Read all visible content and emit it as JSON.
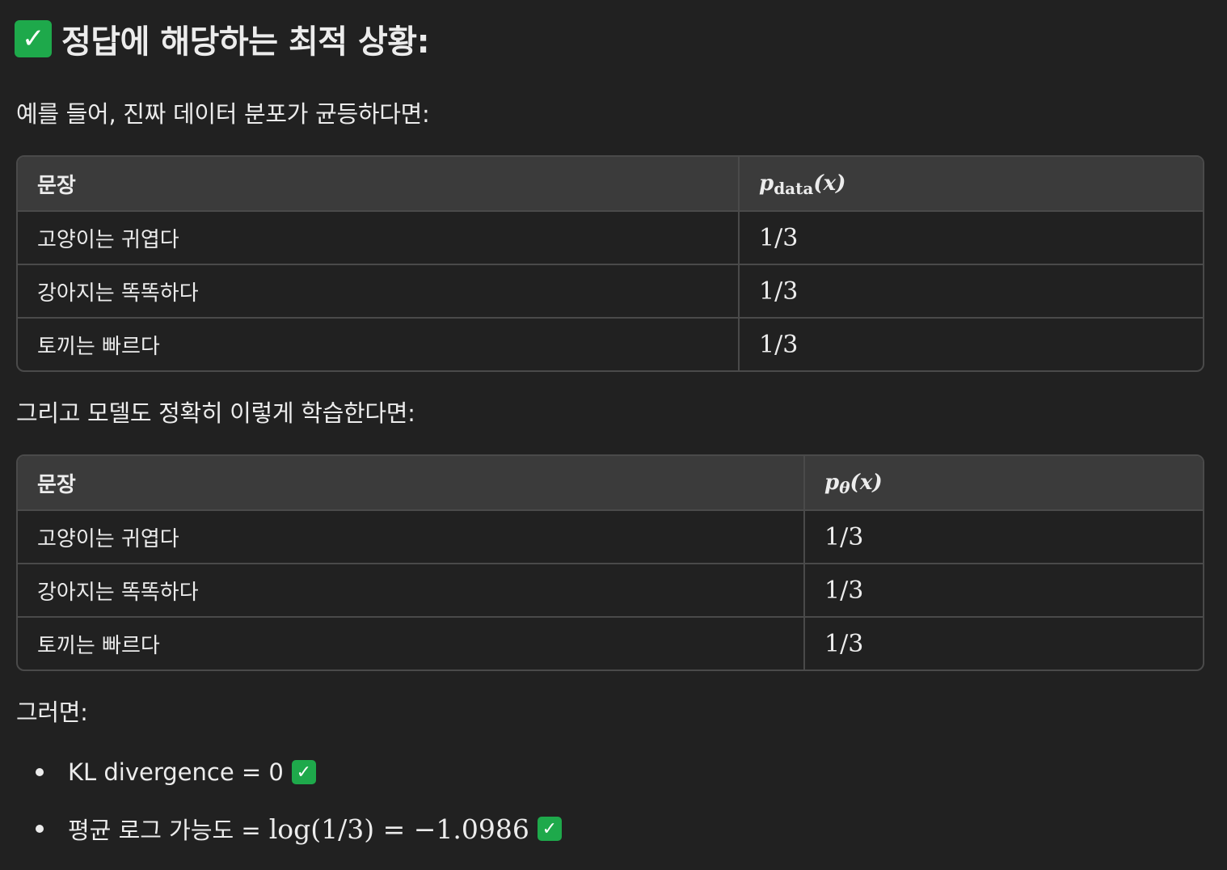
{
  "heading": {
    "icon": "check-mark-icon",
    "text": "정답에 해당하는 최적 상황:"
  },
  "intro1": "예를 들어, 진짜 데이터 분포가 균등하다면:",
  "table1": {
    "col1": "문장",
    "col2_base": "p",
    "col2_sub": "data",
    "col2_arg": "(x)",
    "rows": [
      {
        "sentence": "고양이는 귀엽다",
        "prob": "1/3"
      },
      {
        "sentence": "강아지는 똑똑하다",
        "prob": "1/3"
      },
      {
        "sentence": "토끼는 빠르다",
        "prob": "1/3"
      }
    ]
  },
  "intro2": "그리고 모델도 정확히 이렇게 학습한다면:",
  "table2": {
    "col1": "문장",
    "col2_base": "p",
    "col2_sub": "θ",
    "col2_arg": "(x)",
    "rows": [
      {
        "sentence": "고양이는 귀엽다",
        "prob": "1/3"
      },
      {
        "sentence": "강아지는 똑똑하다",
        "prob": "1/3"
      },
      {
        "sentence": "토끼는 빠르다",
        "prob": "1/3"
      }
    ]
  },
  "intro3": "그러면:",
  "bullets": [
    {
      "text": "KL divergence = 0",
      "math": ""
    },
    {
      "text": "평균 로그 가능도 =",
      "math": "log(1/3) = −1.0986"
    }
  ],
  "check_glyph": "✓",
  "accent_color": "#1ea94b"
}
